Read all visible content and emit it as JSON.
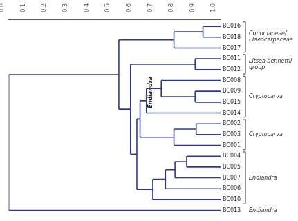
{
  "chart_data": {
    "type": "dendrogram",
    "color": "#2b3990",
    "xlim": [
      0,
      1
    ],
    "xticks": [
      {
        "value": 0,
        "label": "0.0"
      },
      {
        "value": 0.1,
        "label": "0.1"
      },
      {
        "value": 0.2,
        "label": "0.2"
      },
      {
        "value": 0.3,
        "label": "0.3"
      },
      {
        "value": 0.4,
        "label": "0.4"
      },
      {
        "value": 0.5,
        "label": "0.5"
      },
      {
        "value": 0.6,
        "label": "0.6"
      },
      {
        "value": 0.7,
        "label": "0.7"
      },
      {
        "value": 0.8,
        "label": "0.8"
      },
      {
        "value": 0.9,
        "label": "0.9"
      },
      {
        "value": 1,
        "label": "1.0"
      }
    ],
    "grid": false,
    "tree": {
      "height": 0.0,
      "children": [
        {
          "height": 0.52,
          "children": [
            {
              "height": 0.78,
              "children": [
                {
                  "height": 0.917,
                  "children": [
                    "BC016",
                    "BC018"
                  ]
                },
                "BC017"
              ]
            },
            {
              "height": 0.575,
              "children": [
                {
                  "height": 0.88,
                  "children": [
                    "BC011",
                    "BC012"
                  ]
                },
                {
                  "height": 0.605,
                  "children": [
                    {
                      "height": 0.62,
                      "children": [
                        {
                          "height": 0.65,
                          "children": [
                            {
                              "height": 0.72,
                              "children": [
                                "BC008",
                                {
                                  "height": 0.88,
                                  "children": [
                                    "BC009",
                                    "BC015"
                                  ]
                                }
                              ]
                            },
                            "BC014"
                          ]
                        },
                        {
                          "height": 0.78,
                          "children": [
                            {
                              "height": 0.885,
                              "children": [
                                "BC002",
                                "BC003"
                              ]
                            },
                            "BC001"
                          ]
                        }
                      ]
                    },
                    {
                      "height": 0.68,
                      "children": [
                        {
                          "height": 0.74,
                          "children": [
                            {
                              "height": 0.785,
                              "children": [
                                {
                                  "height": 0.84,
                                  "children": [
                                    "BC004",
                                    "BC005"
                                  ]
                                },
                                "BC007"
                              ]
                            },
                            "BC006"
                          ]
                        },
                        "BC010"
                      ]
                    }
                  ]
                }
              ]
            }
          ]
        },
        "BC013"
      ]
    },
    "groups": [
      {
        "lines": [
          "Cunoniaceae/",
          "Elaeocarpaceae"
        ],
        "from": "BC016",
        "to": "BC017"
      },
      {
        "lines": [
          "Litsea bennettii",
          "group"
        ],
        "from": "BC011",
        "to": "BC012"
      },
      {
        "lines": [
          "Cryptocarya"
        ],
        "from": "BC008",
        "to": "BC014"
      },
      {
        "lines": [
          "Cryptocarya"
        ],
        "from": "BC002",
        "to": "BC001"
      },
      {
        "lines": [
          "Endiandra"
        ],
        "from": "BC004",
        "to": "BC010"
      },
      {
        "lines": [
          "Endiandra"
        ],
        "from": "BC013",
        "to": "BC013"
      }
    ],
    "annotations": [
      {
        "text": "Endiandra",
        "near": "BC014"
      }
    ]
  }
}
